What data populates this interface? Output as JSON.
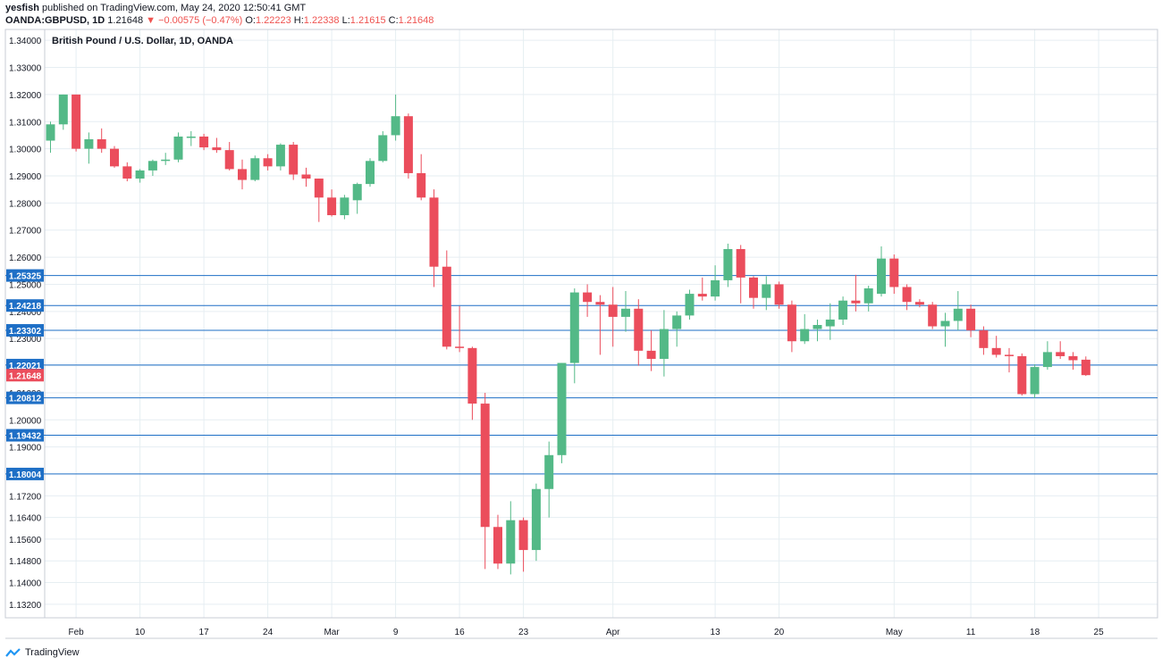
{
  "header": {
    "author": "yesfish",
    "published": "published on TradingView.com, May 24, 2020 12:50:41 GMT",
    "symbol": "OANDA:GBPUSD, 1D",
    "last": "1.21648",
    "change": "−0.00575 (−0.47%)",
    "open_label": "O:",
    "open": "1.22223",
    "high_label": "H:",
    "high": "1.22338",
    "low_label": "L:",
    "low": "1.21615",
    "close_label": "C:",
    "close": "1.21648"
  },
  "footer": {
    "brand": "TradingView"
  },
  "colors": {
    "up": "#53b987",
    "down": "#eb4d5c",
    "hline": "#1e6fc6",
    "grid": "#e6eef2",
    "last_badge": "#eb4d5c"
  },
  "chart_data": {
    "type": "candlestick",
    "title": "British Pound / U.S. Dollar, 1D, OANDA",
    "ylim": [
      1.127,
      1.344
    ],
    "y_ticks": [
      "1.34000",
      "1.33000",
      "1.32000",
      "1.31000",
      "1.30000",
      "1.29000",
      "1.28000",
      "1.27000",
      "1.26000",
      "1.25000",
      "1.24000",
      "1.23000",
      "1.22000",
      "1.21000",
      "1.20000",
      "1.19000",
      "1.18000",
      "1.17200",
      "1.16400",
      "1.15600",
      "1.14800",
      "1.14000",
      "1.13200"
    ],
    "x_ticks": [
      {
        "label": "Feb",
        "i": 2
      },
      {
        "label": "10",
        "i": 7
      },
      {
        "label": "17",
        "i": 12
      },
      {
        "label": "24",
        "i": 17
      },
      {
        "label": "Mar",
        "i": 22
      },
      {
        "label": "9",
        "i": 27
      },
      {
        "label": "16",
        "i": 32
      },
      {
        "label": "23",
        "i": 37
      },
      {
        "label": "Apr",
        "i": 44
      },
      {
        "label": "13",
        "i": 52
      },
      {
        "label": "20",
        "i": 57
      },
      {
        "label": "May",
        "i": 66
      },
      {
        "label": "11",
        "i": 72
      },
      {
        "label": "18",
        "i": 77
      },
      {
        "label": "25",
        "i": 82
      }
    ],
    "horizontal_levels": [
      "1.25325",
      "1.24218",
      "1.23302",
      "1.22021",
      "1.20812",
      "1.19432",
      "1.18004"
    ],
    "last_price": "1.21648",
    "candles": [
      [
        1.303,
        1.31,
        1.2985,
        1.309
      ],
      [
        1.309,
        1.32,
        1.307,
        1.32
      ],
      [
        1.32,
        1.32,
        1.299,
        1.3
      ],
      [
        1.3,
        1.306,
        1.2945,
        1.3035
      ],
      [
        1.3035,
        1.3075,
        1.2985,
        1.3
      ],
      [
        1.3,
        1.301,
        1.293,
        1.2935
      ],
      [
        1.2935,
        1.295,
        1.288,
        1.289
      ],
      [
        1.289,
        1.2925,
        1.2875,
        1.292
      ],
      [
        1.292,
        1.296,
        1.29,
        1.2955
      ],
      [
        1.2955,
        1.2985,
        1.294,
        1.296
      ],
      [
        1.296,
        1.306,
        1.295,
        1.3045
      ],
      [
        1.304,
        1.3065,
        1.301,
        1.3045
      ],
      [
        1.3045,
        1.3055,
        1.2995,
        1.3005
      ],
      [
        1.3005,
        1.304,
        1.2985,
        1.2995
      ],
      [
        1.2995,
        1.3025,
        1.292,
        1.2925
      ],
      [
        1.2925,
        1.296,
        1.285,
        1.2885
      ],
      [
        1.2885,
        1.2975,
        1.288,
        1.2965
      ],
      [
        1.2965,
        1.298,
        1.292,
        1.2935
      ],
      [
        1.2935,
        1.302,
        1.292,
        1.3015
      ],
      [
        1.3015,
        1.3025,
        1.2885,
        1.2905
      ],
      [
        1.2905,
        1.293,
        1.286,
        1.289
      ],
      [
        1.289,
        1.289,
        1.273,
        1.282
      ],
      [
        1.282,
        1.285,
        1.275,
        1.2755
      ],
      [
        1.2755,
        1.283,
        1.274,
        1.282
      ],
      [
        1.281,
        1.2875,
        1.276,
        1.287
      ],
      [
        1.287,
        1.2965,
        1.286,
        1.2955
      ],
      [
        1.2955,
        1.3065,
        1.295,
        1.305
      ],
      [
        1.305,
        1.32,
        1.303,
        1.312
      ],
      [
        1.312,
        1.313,
        1.289,
        1.291
      ],
      [
        1.291,
        1.298,
        1.281,
        1.282
      ],
      [
        1.282,
        1.285,
        1.249,
        1.2565
      ],
      [
        1.2565,
        1.2625,
        1.226,
        1.227
      ],
      [
        1.227,
        1.242,
        1.225,
        1.2265
      ],
      [
        1.2265,
        1.227,
        1.2,
        1.206
      ],
      [
        1.206,
        1.21,
        1.145,
        1.1605
      ],
      [
        1.1605,
        1.165,
        1.145,
        1.147
      ],
      [
        1.147,
        1.17,
        1.143,
        1.163
      ],
      [
        1.163,
        1.164,
        1.144,
        1.152
      ],
      [
        1.152,
        1.1765,
        1.148,
        1.1745
      ],
      [
        1.1745,
        1.192,
        1.164,
        1.187
      ],
      [
        1.187,
        1.221,
        1.184,
        1.221
      ],
      [
        1.221,
        1.2485,
        1.2135,
        1.247
      ],
      [
        1.247,
        1.25,
        1.238,
        1.2435
      ],
      [
        1.2435,
        1.246,
        1.224,
        1.2425
      ],
      [
        1.2425,
        1.249,
        1.227,
        1.238
      ],
      [
        1.238,
        1.2475,
        1.2325,
        1.241
      ],
      [
        1.241,
        1.2445,
        1.22,
        1.2255
      ],
      [
        1.2255,
        1.233,
        1.218,
        1.2225
      ],
      [
        1.2225,
        1.2405,
        1.216,
        1.2335
      ],
      [
        1.2335,
        1.24,
        1.227,
        1.2385
      ],
      [
        1.2385,
        1.248,
        1.237,
        1.2465
      ],
      [
        1.2465,
        1.2525,
        1.244,
        1.2455
      ],
      [
        1.2455,
        1.257,
        1.244,
        1.2515
      ],
      [
        1.2515,
        1.265,
        1.249,
        1.263
      ],
      [
        1.263,
        1.2645,
        1.243,
        1.2525
      ],
      [
        1.2525,
        1.253,
        1.241,
        1.245
      ],
      [
        1.245,
        1.253,
        1.2405,
        1.25
      ],
      [
        1.25,
        1.251,
        1.241,
        1.2425
      ],
      [
        1.2425,
        1.244,
        1.225,
        1.229
      ],
      [
        1.229,
        1.239,
        1.228,
        1.2335
      ],
      [
        1.2335,
        1.237,
        1.229,
        1.235
      ],
      [
        1.2345,
        1.243,
        1.2295,
        1.237
      ],
      [
        1.237,
        1.2455,
        1.235,
        1.244
      ],
      [
        1.244,
        1.2535,
        1.24,
        1.243
      ],
      [
        1.243,
        1.2495,
        1.24,
        1.2485
      ],
      [
        1.2465,
        1.264,
        1.2455,
        1.2595
      ],
      [
        1.2595,
        1.261,
        1.2465,
        1.249
      ],
      [
        1.249,
        1.25,
        1.2405,
        1.2435
      ],
      [
        1.2435,
        1.2445,
        1.2415,
        1.2425
      ],
      [
        1.2425,
        1.2435,
        1.2335,
        1.2345
      ],
      [
        1.2345,
        1.2395,
        1.227,
        1.2365
      ],
      [
        1.2365,
        1.2475,
        1.233,
        1.241
      ],
      [
        1.241,
        1.2425,
        1.2305,
        1.233
      ],
      [
        1.233,
        1.2345,
        1.224,
        1.2265
      ],
      [
        1.2265,
        1.231,
        1.223,
        1.224
      ],
      [
        1.224,
        1.2265,
        1.2175,
        1.2235
      ],
      [
        1.2235,
        1.2245,
        1.209,
        1.2095
      ],
      [
        1.2095,
        1.2205,
        1.208,
        1.2195
      ],
      [
        1.2195,
        1.229,
        1.2185,
        1.225
      ],
      [
        1.225,
        1.229,
        1.2225,
        1.2235
      ],
      [
        1.2235,
        1.225,
        1.2185,
        1.222
      ],
      [
        1.2222,
        1.2234,
        1.2162,
        1.2165
      ]
    ]
  }
}
